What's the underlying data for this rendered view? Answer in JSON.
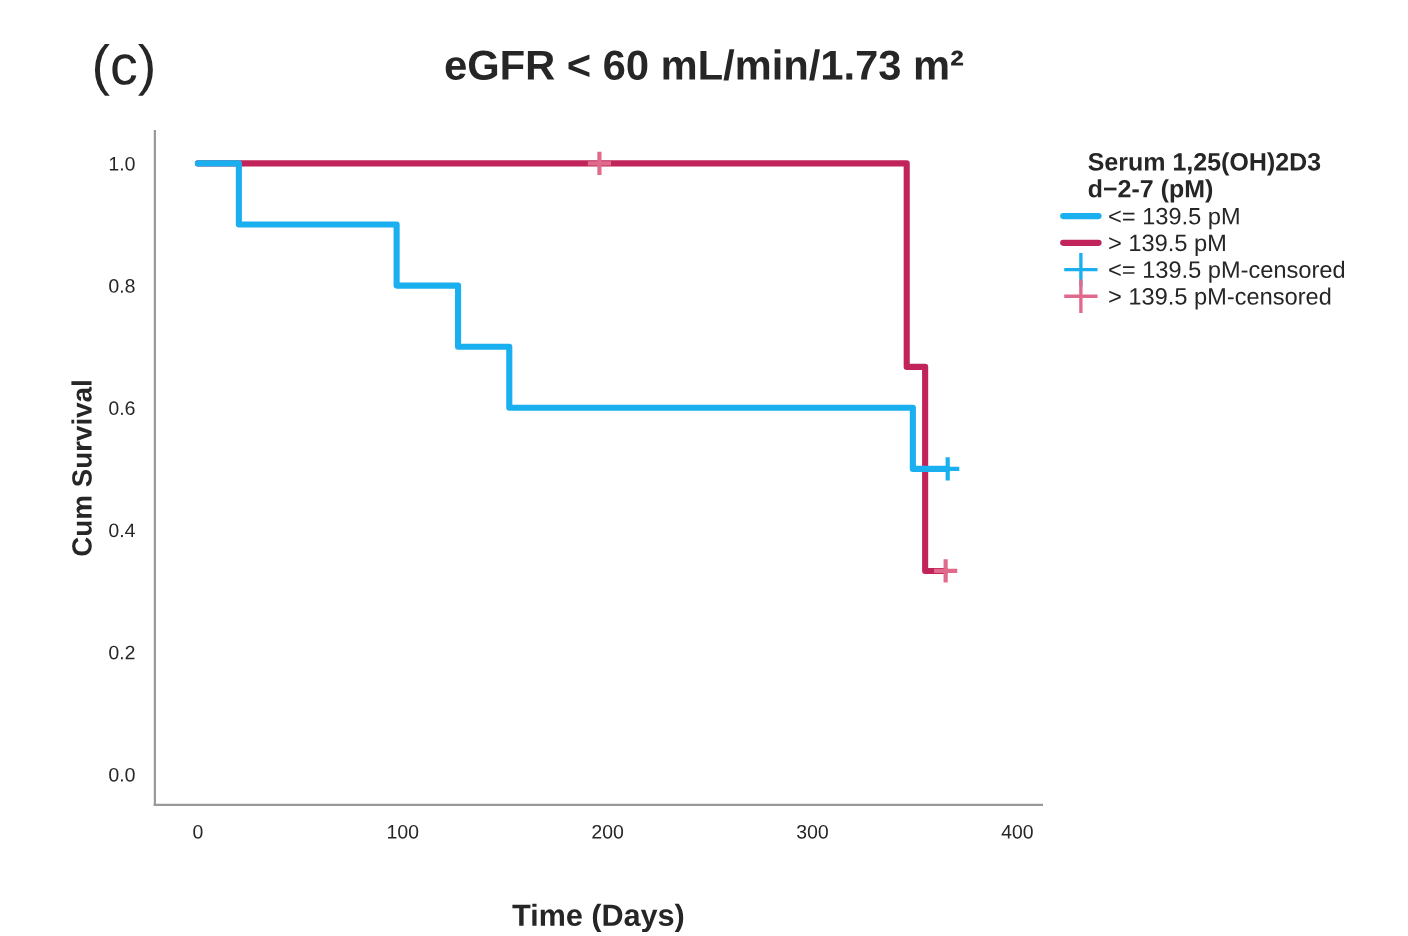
{
  "chart_data": {
    "type": "step",
    "title": "eGFR < 60 mL/min/1.73 m²",
    "annotations": [
      "(c)"
    ],
    "xlabel": "Time (Days)",
    "ylabel": "Cum Survival",
    "legend_title": "Serum 1,25(OH)2D3\nd−2-7 (pM)",
    "legend": "right",
    "grid": false,
    "xlim": [
      -21,
      412
    ],
    "xticks": [
      0,
      100,
      200,
      300,
      400
    ],
    "ylim": [
      -0.05,
      1.053
    ],
    "yticks": [
      {
        "value": 0,
        "label": "0.0"
      },
      {
        "value": 0.2,
        "label": "0.2"
      },
      {
        "value": 0.4,
        "label": "0.4"
      },
      {
        "value": 0.6,
        "label": "0.6"
      },
      {
        "value": 0.8,
        "label": "0.8"
      },
      {
        "value": 1,
        "label": "1.0"
      }
    ],
    "series": [
      {
        "name": "<= 139.5 pM",
        "color": "#1ab0f0",
        "x": [
          0,
          20,
          97,
          127,
          152,
          349,
          366
        ],
        "values": [
          1,
          0.9,
          0.8,
          0.7,
          0.6,
          0.5,
          0.5
        ]
      },
      {
        "name": "> 139.5 pM",
        "color": "#c0245a",
        "x": [
          0,
          346,
          355,
          365
        ],
        "values": [
          1,
          0.667,
          0.333,
          0.333
        ]
      },
      {
        "name": "<= 139.5 pM-censored",
        "type": "scatter",
        "marker": "cross",
        "color": "#1ab0f0",
        "x": [
          366
        ],
        "values": [
          0.5
        ]
      },
      {
        "name": "> 139.5 pM-censored",
        "type": "scatter",
        "marker": "cross",
        "color": "#e06a8c",
        "x": [
          196,
          365
        ],
        "values": [
          1,
          0.333
        ]
      }
    ]
  }
}
